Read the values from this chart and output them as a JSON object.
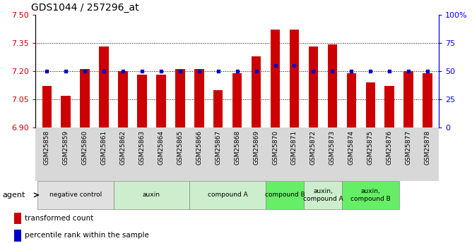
{
  "title": "GDS1044 / 257296_at",
  "samples": [
    "GSM25858",
    "GSM25859",
    "GSM25860",
    "GSM25861",
    "GSM25862",
    "GSM25863",
    "GSM25864",
    "GSM25865",
    "GSM25866",
    "GSM25867",
    "GSM25868",
    "GSM25869",
    "GSM25870",
    "GSM25871",
    "GSM25872",
    "GSM25873",
    "GSM25874",
    "GSM25875",
    "GSM25876",
    "GSM25877",
    "GSM25878"
  ],
  "bar_values": [
    7.12,
    7.07,
    7.21,
    7.33,
    7.2,
    7.18,
    7.18,
    7.21,
    7.21,
    7.1,
    7.19,
    7.28,
    7.42,
    7.42,
    7.33,
    7.34,
    7.19,
    7.14,
    7.12,
    7.2,
    7.19
  ],
  "percentile_values": [
    50,
    50,
    50,
    50,
    50,
    50,
    50,
    50,
    50,
    50,
    50,
    50,
    55,
    55,
    50,
    50,
    50,
    50,
    50,
    50,
    50
  ],
  "bar_color": "#cc0000",
  "dot_color": "#0000cc",
  "ylim_left": [
    6.9,
    7.5
  ],
  "ylim_right": [
    0,
    100
  ],
  "yticks_left": [
    6.9,
    7.05,
    7.2,
    7.35,
    7.5
  ],
  "yticks_right": [
    0,
    25,
    50,
    75,
    100
  ],
  "ytick_labels_right": [
    "0",
    "25",
    "50",
    "75",
    "100%"
  ],
  "hlines": [
    7.05,
    7.2,
    7.35
  ],
  "groups": [
    {
      "label": "negative control",
      "start": 0,
      "end": 3,
      "color": "#e0e0e0"
    },
    {
      "label": "auxin",
      "start": 4,
      "end": 7,
      "color": "#cceecc"
    },
    {
      "label": "compound A",
      "start": 8,
      "end": 11,
      "color": "#cceecc"
    },
    {
      "label": "compound B",
      "start": 12,
      "end": 13,
      "color": "#66ee66"
    },
    {
      "label": "auxin,\ncompound A",
      "start": 14,
      "end": 15,
      "color": "#cceecc"
    },
    {
      "label": "auxin,\ncompound B",
      "start": 16,
      "end": 18,
      "color": "#66ee66"
    }
  ],
  "agent_label": "agent",
  "legend_bar_label": "transformed count",
  "legend_dot_label": "percentile rank within the sample",
  "bar_width": 0.5
}
